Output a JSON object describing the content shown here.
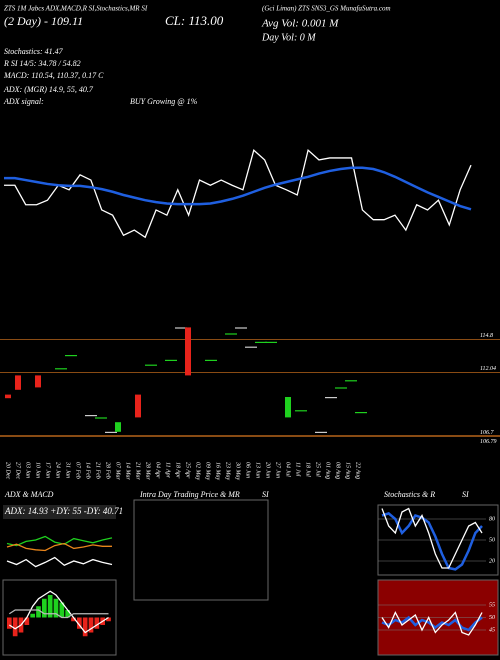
{
  "header": {
    "title": "ZTS 1M Jabcs ADX,MACD,R SI,Stochastics,MR SI",
    "source": "(Gci Liman) ZTS SNS3_GS MunafaSutra.com",
    "day_change": "(2 Day) - 109.11",
    "close": "CL: 113.00",
    "avg_vol": "Avg Vol: 0.001 M",
    "day_vol": "Day Vol: 0 M",
    "stochastics": "Stochastics: 41.47",
    "rsi": "R SI 14/5: 34.78 / 54.82",
    "macd": "MACD: 110.54, 110.37, 0.17 C",
    "adx": "ADX: (MGR) 14.9, 55, 40.7",
    "adx_signal": "ADX signal:",
    "signal": "BUY Growing @ 1%"
  },
  "chart_data": [
    {
      "type": "line",
      "ylim": [
        100,
        120
      ],
      "series": [
        {
          "color": "#ffffff",
          "values": [
            111.5,
            111.5,
            108.5,
            108.5,
            109.2,
            111.5,
            110.8,
            113.1,
            112.3,
            107.7,
            106.9,
            103.8,
            104.6,
            103.5,
            107.7,
            106.9,
            110.8,
            106.9,
            112.3,
            111.5,
            112.3,
            111.5,
            110.8,
            116.9,
            115.4,
            111.5,
            110.8,
            110,
            116.9,
            115.4,
            115.7,
            115.7,
            115.7,
            107.7,
            106.2,
            106.2,
            106.9,
            104.6,
            108.5,
            107.7,
            109.2,
            105.4,
            110.8,
            114.6
          ]
        },
        {
          "color": "#1f5fe0",
          "values": [
            112.6,
            112.6,
            112.3,
            112,
            111.7,
            111.5,
            111.4,
            111.4,
            111.2,
            110.9,
            110.5,
            110,
            109.6,
            109.2,
            108.9,
            108.7,
            108.6,
            108.6,
            108.6,
            108.7,
            109,
            109.4,
            109.9,
            110.5,
            111.1,
            111.6,
            112,
            112.4,
            112.8,
            113.3,
            113.7,
            114,
            114.2,
            114.2,
            114,
            113.5,
            112.8,
            112,
            111.2,
            110.4,
            109.7,
            109,
            108.3,
            107.8
          ]
        }
      ]
    },
    {
      "type": "candlestick",
      "ylim": [
        106,
        116
      ],
      "categories": [
        "20 Dec",
        "27 Dec",
        "03 Jan",
        "10 Jan",
        "17 Jan",
        "24 Jan",
        "31 Jan",
        "07 Feb",
        "14 Feb",
        "21 Feb",
        "28 Feb",
        "07 Mar",
        "14 Mar",
        "21 Mar",
        "28 Mar",
        "04 Apr",
        "11 Apr",
        "18 Apr",
        "25 Apr",
        "02 May",
        "09 May",
        "16 May",
        "23 May",
        "30 May",
        "06 Jun",
        "13 Jun",
        "20 Jun",
        "27 Jun",
        "04 Jul",
        "11 Jul",
        "18 Jul",
        "25 Jul",
        "01 Aug",
        "08 Aug",
        "15 Aug",
        "22 Aug"
      ],
      "open": [
        110.2,
        111.8,
        null,
        111.8,
        null,
        112.4,
        113.5,
        null,
        108.5,
        108.3,
        107.1,
        107.1,
        null,
        110.2,
        112.7,
        null,
        113.1,
        115.8,
        115.8,
        null,
        113.1,
        null,
        115.3,
        115.8,
        114.2,
        114.6,
        114.6,
        null,
        108.3,
        108.9,
        null,
        107.1,
        110,
        110.8,
        111.4,
        108.75
      ],
      "close": [
        109.9,
        110.6,
        null,
        110.8,
        null,
        112.4,
        113.5,
        null,
        108.5,
        108.3,
        107.1,
        107.9,
        null,
        108.3,
        112.7,
        null,
        113.1,
        115.8,
        111.8,
        null,
        113.1,
        null,
        115.3,
        115.8,
        114.2,
        114.6,
        114.6,
        null,
        110,
        108.9,
        null,
        107.1,
        110,
        110.8,
        111.4,
        108.75
      ],
      "colors": [
        "#e8231b",
        "#e8231b",
        null,
        "#e8231b",
        null,
        "#1fd11f",
        "#1fd11f",
        null,
        "#cccccc",
        "#1fd11f",
        "#cccccc",
        "#1fd11f",
        null,
        "#e8231b",
        "#1fd11f",
        null,
        "#1fd11f",
        "#cccccc",
        "#e8231b",
        null,
        "#1fd11f",
        null,
        "#1fd11f",
        "#cccccc",
        "#cccccc",
        "#1fd11f",
        "#1fd11f",
        null,
        "#1fd11f",
        "#1fd11f",
        null,
        "#cccccc",
        "#cccccc",
        "#1fd11f",
        "#1fd11f",
        "#1fd11f"
      ],
      "levels": [
        114.8,
        112.04,
        106.7,
        106.79
      ],
      "level_color": "#b8651a"
    },
    {
      "type": "line",
      "title": "ADX & MACD",
      "label": "ADX: 14.93 +DY: 55 -DY: 40.71",
      "ylim": [
        0,
        100
      ],
      "series": [
        {
          "color": "#1fd11f",
          "values": [
            45,
            42,
            48,
            50,
            55,
            47,
            44,
            52,
            49,
            46,
            50,
            53
          ]
        },
        {
          "color": "#e8851b",
          "values": [
            40,
            44,
            38,
            36,
            35,
            42,
            45,
            38,
            40,
            43,
            41,
            41
          ]
        },
        {
          "color": "#ffffff",
          "values": [
            20,
            15,
            22,
            12,
            18,
            25,
            14,
            20,
            16,
            22,
            18,
            15
          ]
        }
      ]
    },
    {
      "type": "bar",
      "ylim": [
        -1,
        1
      ],
      "up_color": "#1fd11f",
      "down_color": "#e8231b",
      "values": [
        -0.3,
        -0.5,
        -0.4,
        -0.2,
        0.1,
        0.3,
        0.5,
        0.6,
        0.5,
        0.4,
        0.2,
        -0.1,
        -0.3,
        -0.5,
        -0.4,
        -0.3,
        -0.2,
        -0.1
      ],
      "series": [
        {
          "color": "#ffffff",
          "values": [
            -0.2,
            -0.3,
            -0.2,
            0,
            0.3,
            0.5,
            0.6,
            0.7,
            0.6,
            0.4,
            0.2,
            0,
            -0.2,
            -0.4,
            -0.3,
            -0.2,
            -0.1,
            0
          ]
        },
        {
          "color": "#bbbbbb",
          "values": [
            0.1,
            0.2,
            0.2,
            0.2,
            0.2,
            0.2,
            0.1,
            0.1,
            0.1,
            0,
            0,
            0.1,
            0.1,
            0.1,
            0.1,
            0.1,
            0.1,
            0.1
          ]
        }
      ]
    },
    {
      "type": "empty",
      "title": "Intra Day Trading Price & MR",
      "title2": "SI"
    },
    {
      "type": "line",
      "title": "Stochastics & R",
      "title2": "SI",
      "ylim": [
        0,
        100
      ],
      "yticks": [
        80,
        50,
        20
      ],
      "series": [
        {
          "color": "#1f5fe0",
          "values": [
            85,
            88,
            80,
            60,
            70,
            85,
            82,
            75,
            55,
            30,
            10,
            8,
            15,
            35,
            60,
            70
          ]
        },
        {
          "color": "#ffffff",
          "values": [
            95,
            70,
            60,
            90,
            95,
            70,
            85,
            60,
            30,
            10,
            10,
            30,
            50,
            70,
            75,
            60
          ]
        }
      ]
    },
    {
      "type": "line",
      "ylim": [
        35,
        65
      ],
      "yticks": [
        55,
        50,
        45
      ],
      "background": "#8b0000",
      "series": [
        {
          "color": "#1f5fe0",
          "values": [
            48,
            47,
            49,
            48,
            50,
            47,
            49,
            48,
            46,
            48,
            47,
            49,
            46,
            45,
            48,
            50
          ]
        },
        {
          "color": "#ffffff",
          "values": [
            50,
            46,
            52,
            47,
            49,
            51,
            45,
            50,
            44,
            47,
            49,
            52,
            44,
            43,
            47,
            52
          ]
        }
      ]
    }
  ]
}
